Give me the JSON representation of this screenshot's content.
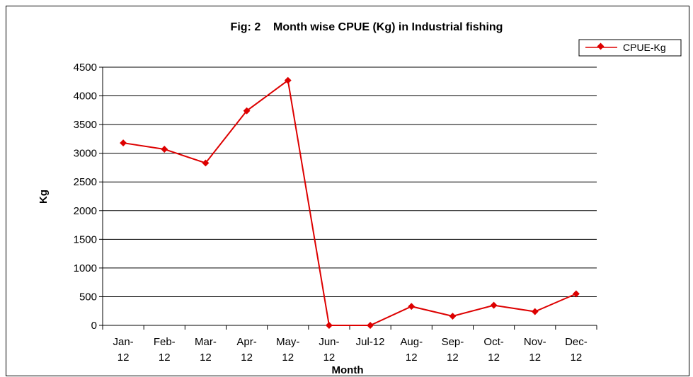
{
  "chart_data": {
    "type": "line",
    "title": "Fig: 2    Month wise CPUE (Kg) in Industrial fishing",
    "xlabel": "Month",
    "ylabel": "Kg",
    "categories": [
      [
        "Jan-",
        "12"
      ],
      [
        "Feb-",
        "12"
      ],
      [
        "Mar-",
        "12"
      ],
      [
        "Apr-",
        "12"
      ],
      [
        "May-",
        "12"
      ],
      [
        "Jun-",
        "12"
      ],
      [
        "Jul-12"
      ],
      [
        "Aug-",
        "12"
      ],
      [
        "Sep-",
        "12"
      ],
      [
        "Oct-",
        "12"
      ],
      [
        "Nov-",
        "12"
      ],
      [
        "Dec-",
        "12"
      ]
    ],
    "series": [
      {
        "name": "CPUE-Kg",
        "color": "#dd0000",
        "values": [
          3180,
          3070,
          2830,
          3740,
          4270,
          0,
          0,
          330,
          160,
          350,
          240,
          550
        ]
      }
    ],
    "ylim": [
      0,
      4500
    ],
    "yticks": [
      0,
      500,
      1000,
      1500,
      2000,
      2500,
      3000,
      3500,
      4000,
      4500
    ],
    "grid": "horizontal",
    "legend_position": "top-right"
  }
}
